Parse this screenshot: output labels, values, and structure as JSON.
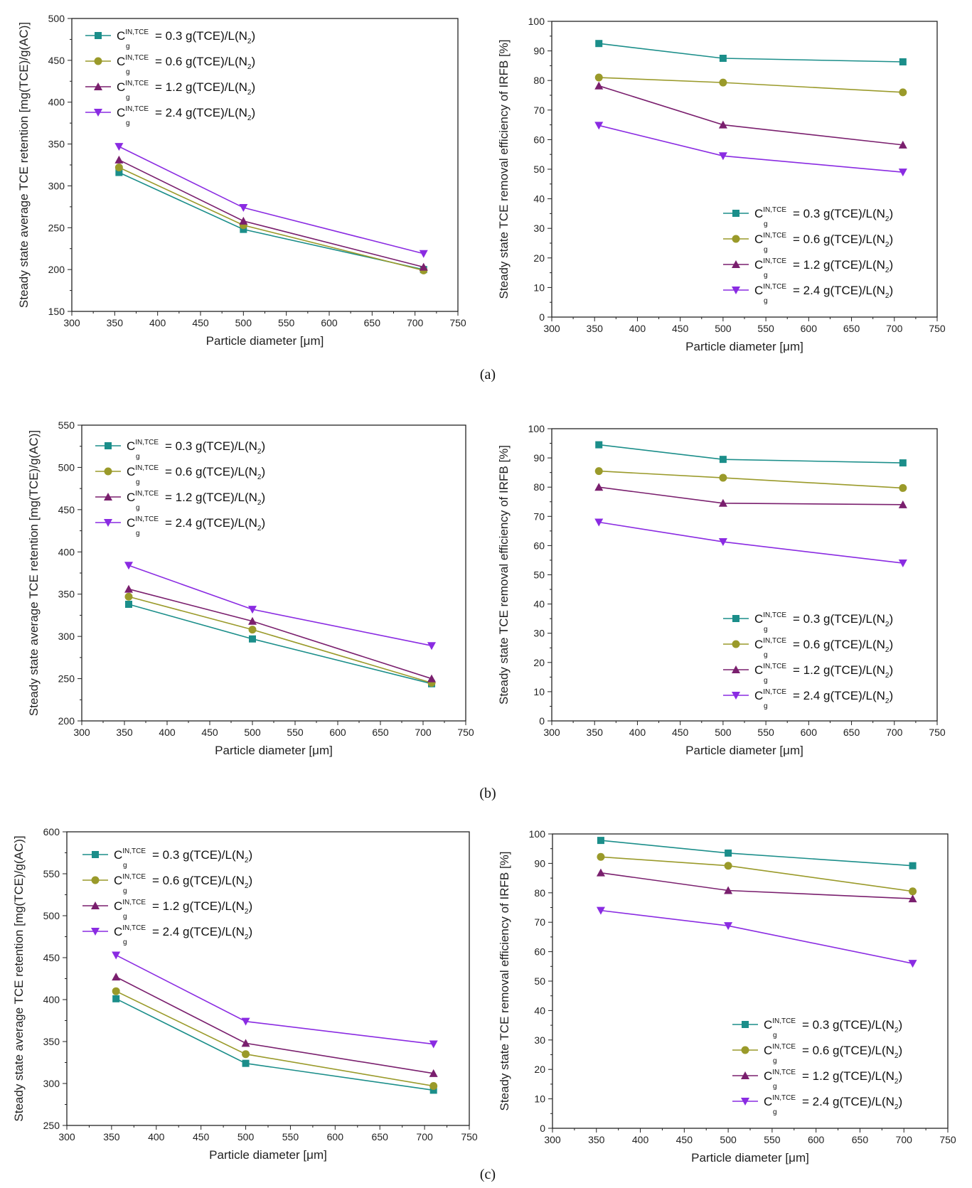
{
  "colors": {
    "0.3": "#1b8e8a",
    "0.6": "#9a9a2a",
    "1.2": "#7a1f6e",
    "2.4": "#8a2be2"
  },
  "panel_captions": [
    "(a)",
    "(b)",
    "(c)"
  ],
  "chart_data": [
    {
      "id": "a-left",
      "type": "line",
      "xlabel": "Particle diameter [μm]",
      "ylabel": "Steady state average TCE retention [mg(TCE)/g(AC)]",
      "xlim": [
        300,
        750
      ],
      "xticks": [
        300,
        350,
        400,
        450,
        500,
        550,
        600,
        650,
        700,
        750
      ],
      "ylim": [
        150,
        500
      ],
      "yticks": [
        150,
        200,
        250,
        300,
        350,
        400,
        450,
        500
      ],
      "legend_position": "top-left",
      "x": [
        355,
        500,
        710
      ],
      "series": [
        {
          "key": "0.3",
          "name": "C_g^IN,TCE = 0.3 g(TCE)/L(N_2)",
          "marker": "square",
          "values": [
            316,
            248,
            200
          ]
        },
        {
          "key": "0.6",
          "name": "C_g^IN,TCE = 0.6 g(TCE)/L(N_2)",
          "marker": "circle",
          "values": [
            322,
            253,
            199
          ]
        },
        {
          "key": "1.2",
          "name": "C_g^IN,TCE = 1.2 g(TCE)/L(N_2)",
          "marker": "triangle-up",
          "values": [
            331,
            258,
            203
          ]
        },
        {
          "key": "2.4",
          "name": "C_g^IN,TCE = 2.4 g(TCE)/L(N_2)",
          "marker": "triangle-down",
          "values": [
            347,
            274,
            219
          ]
        }
      ]
    },
    {
      "id": "a-right",
      "type": "line",
      "xlabel": "Particle diameter [μm]",
      "ylabel": "Steady state TCE removal efficiency of IRFB [%]",
      "xlim": [
        300,
        750
      ],
      "xticks": [
        300,
        350,
        400,
        450,
        500,
        550,
        600,
        650,
        700,
        750
      ],
      "ylim": [
        0,
        100
      ],
      "yticks": [
        0,
        10,
        20,
        30,
        40,
        50,
        60,
        70,
        80,
        90,
        100
      ],
      "legend_position": "bottom-right",
      "x": [
        355,
        500,
        710
      ],
      "series": [
        {
          "key": "0.3",
          "name": "C_g^IN,TCE = 0.3 g(TCE)/L(N_2)",
          "marker": "square",
          "values": [
            92.5,
            87.5,
            86.3
          ]
        },
        {
          "key": "0.6",
          "name": "C_g^IN,TCE = 0.6 g(TCE)/L(N_2)",
          "marker": "circle",
          "values": [
            81,
            79.3,
            76
          ]
        },
        {
          "key": "1.2",
          "name": "C_g^IN,TCE = 1.2 g(TCE)/L(N_2)",
          "marker": "triangle-up",
          "values": [
            78.2,
            65,
            58.2
          ]
        },
        {
          "key": "2.4",
          "name": "C_g^IN,TCE = 2.4 g(TCE)/L(N_2)",
          "marker": "triangle-down",
          "values": [
            64.8,
            54.5,
            49
          ]
        }
      ]
    },
    {
      "id": "b-left",
      "type": "line",
      "xlabel": "Particle diameter [μm]",
      "ylabel": "Steady state average TCE retention [mg(TCE)/g(AC)]",
      "xlim": [
        300,
        750
      ],
      "xticks": [
        300,
        350,
        400,
        450,
        500,
        550,
        600,
        650,
        700,
        750
      ],
      "ylim": [
        200,
        550
      ],
      "yticks": [
        200,
        250,
        300,
        350,
        400,
        450,
        500,
        550
      ],
      "legend_position": "top-left",
      "x": [
        355,
        500,
        710
      ],
      "series": [
        {
          "key": "0.3",
          "name": "C_g^IN,TCE = 0.3 g(TCE)/L(N_2)",
          "marker": "square",
          "values": [
            338,
            297,
            244
          ]
        },
        {
          "key": "0.6",
          "name": "C_g^IN,TCE = 0.6 g(TCE)/L(N_2)",
          "marker": "circle",
          "values": [
            347,
            308,
            245
          ]
        },
        {
          "key": "1.2",
          "name": "C_g^IN,TCE = 1.2 g(TCE)/L(N_2)",
          "marker": "triangle-up",
          "values": [
            356,
            318,
            250
          ]
        },
        {
          "key": "2.4",
          "name": "C_g^IN,TCE = 2.4 g(TCE)/L(N_2)",
          "marker": "triangle-down",
          "values": [
            384,
            332,
            289
          ]
        }
      ]
    },
    {
      "id": "b-right",
      "type": "line",
      "xlabel": "Particle diameter [μm]",
      "ylabel": "Steady state TCE removal efficiency of IRFB [%]",
      "xlim": [
        300,
        750
      ],
      "xticks": [
        300,
        350,
        400,
        450,
        500,
        550,
        600,
        650,
        700,
        750
      ],
      "ylim": [
        0,
        100
      ],
      "yticks": [
        0,
        10,
        20,
        30,
        40,
        50,
        60,
        70,
        80,
        90,
        100
      ],
      "legend_position": "bottom-right",
      "x": [
        355,
        500,
        710
      ],
      "series": [
        {
          "key": "0.3",
          "name": "C_g^IN,TCE = 0.3 g(TCE)/L(N_2)",
          "marker": "square",
          "values": [
            94.5,
            89.5,
            88.3
          ]
        },
        {
          "key": "0.6",
          "name": "C_g^IN,TCE = 0.6 g(TCE)/L(N_2)",
          "marker": "circle",
          "values": [
            85.5,
            83.2,
            79.7
          ]
        },
        {
          "key": "1.2",
          "name": "C_g^IN,TCE = 1.2 g(TCE)/L(N_2)",
          "marker": "triangle-up",
          "values": [
            80,
            74.5,
            74
          ]
        },
        {
          "key": "2.4",
          "name": "C_g^IN,TCE = 2.4 g(TCE)/L(N_2)",
          "marker": "triangle-down",
          "values": [
            68,
            61.3,
            54
          ]
        }
      ]
    },
    {
      "id": "c-left",
      "type": "line",
      "xlabel": "Particle diameter [μm]",
      "ylabel": "Steady state average TCE retention [mg(TCE)/g(AC)]",
      "xlim": [
        300,
        750
      ],
      "xticks": [
        300,
        350,
        400,
        450,
        500,
        550,
        600,
        650,
        700,
        750
      ],
      "ylim": [
        250,
        600
      ],
      "yticks": [
        250,
        300,
        350,
        400,
        450,
        500,
        550,
        600
      ],
      "legend_position": "top-left",
      "x": [
        355,
        500,
        710
      ],
      "series": [
        {
          "key": "0.3",
          "name": "C_g^IN,TCE = 0.3 g(TCE)/L(N_2)",
          "marker": "square",
          "values": [
            401,
            324,
            292
          ]
        },
        {
          "key": "0.6",
          "name": "C_g^IN,TCE = 0.6 g(TCE)/L(N_2)",
          "marker": "circle",
          "values": [
            410,
            335,
            297
          ]
        },
        {
          "key": "1.2",
          "name": "C_g^IN,TCE = 1.2 g(TCE)/L(N_2)",
          "marker": "triangle-up",
          "values": [
            427,
            348,
            312
          ]
        },
        {
          "key": "2.4",
          "name": "C_g^IN,TCE = 2.4 g(TCE)/L(N_2)",
          "marker": "triangle-down",
          "values": [
            453,
            374,
            347
          ]
        }
      ]
    },
    {
      "id": "c-right",
      "type": "line",
      "xlabel": "Particle diameter [μm]",
      "ylabel": "Steady state TCE removal efficiency of IRFB [%]",
      "xlim": [
        300,
        750
      ],
      "xticks": [
        300,
        350,
        400,
        450,
        500,
        550,
        600,
        650,
        700,
        750
      ],
      "ylim": [
        0,
        100
      ],
      "yticks": [
        0,
        10,
        20,
        30,
        40,
        50,
        60,
        70,
        80,
        90,
        100
      ],
      "legend_position": "bottom-right",
      "x": [
        355,
        500,
        710
      ],
      "series": [
        {
          "key": "0.3",
          "name": "C_g^IN,TCE = 0.3 g(TCE)/L(N_2)",
          "marker": "square",
          "values": [
            97.8,
            93.5,
            89.2
          ]
        },
        {
          "key": "0.6",
          "name": "C_g^IN,TCE = 0.6 g(TCE)/L(N_2)",
          "marker": "circle",
          "values": [
            92.2,
            89.2,
            80.5
          ]
        },
        {
          "key": "1.2",
          "name": "C_g^IN,TCE = 1.2 g(TCE)/L(N_2)",
          "marker": "triangle-up",
          "values": [
            86.8,
            80.8,
            78
          ]
        },
        {
          "key": "2.4",
          "name": "C_g^IN,TCE = 2.4 g(TCE)/L(N_2)",
          "marker": "triangle-down",
          "values": [
            74,
            68.8,
            56
          ]
        }
      ]
    }
  ]
}
